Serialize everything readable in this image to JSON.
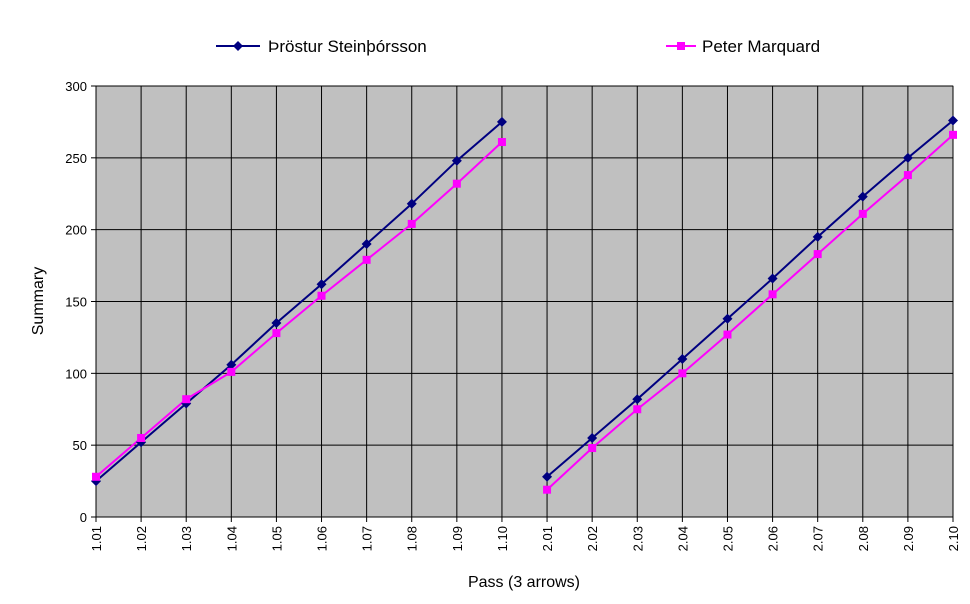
{
  "chart_data": {
    "type": "line",
    "title": "",
    "xlabel": "Pass (3 arrows)",
    "ylabel": "Summary",
    "ylim": [
      0,
      300
    ],
    "yticks": [
      0,
      50,
      100,
      150,
      200,
      250,
      300
    ],
    "grid": true,
    "legend_placement": "top",
    "plot_background": "#c0c0c0",
    "categories": [
      "1.01",
      "1.02",
      "1.03",
      "1.04",
      "1.05",
      "1.06",
      "1.07",
      "1.08",
      "1.09",
      "1.10",
      "2.01",
      "2.02",
      "2.03",
      "2.04",
      "2.05",
      "2.06",
      "2.07",
      "2.08",
      "2.09",
      "2.10"
    ],
    "series": [
      {
        "name": "Þröstur Steinþórsson",
        "color": "#000080",
        "marker": "diamond",
        "values": [
          25,
          52,
          79,
          106,
          135,
          162,
          190,
          218,
          248,
          275,
          28,
          55,
          82,
          110,
          138,
          166,
          195,
          223,
          250,
          276
        ]
      },
      {
        "name": "Peter Marquard",
        "color": "#ff00ff",
        "marker": "square",
        "values": [
          28,
          55,
          82,
          101,
          128,
          154,
          179,
          204,
          232,
          261,
          19,
          48,
          75,
          100,
          127,
          155,
          183,
          211,
          238,
          266
        ]
      }
    ],
    "segments": [
      [
        0,
        9
      ],
      [
        10,
        19
      ]
    ]
  }
}
